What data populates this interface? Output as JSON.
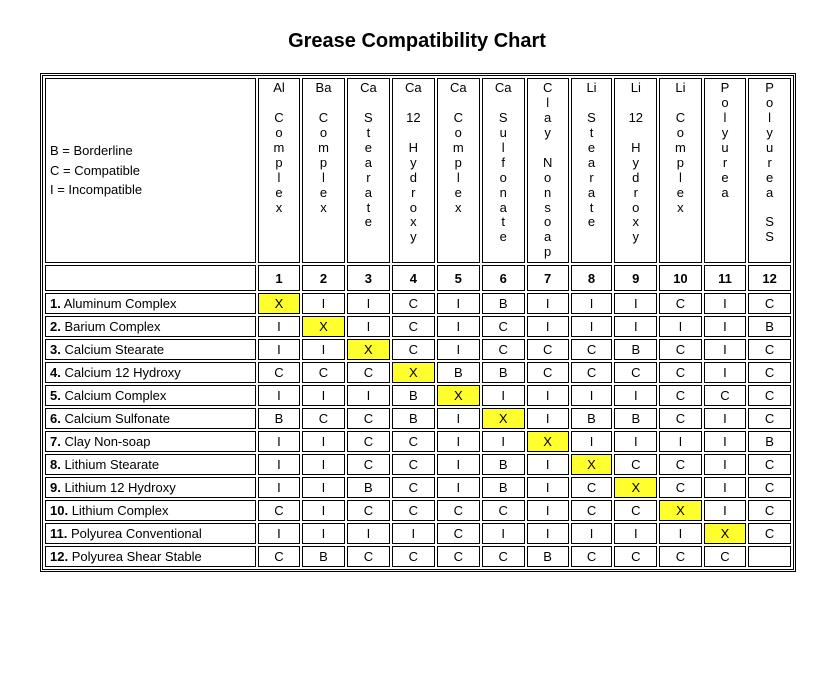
{
  "title": "Grease Compatibility Chart",
  "legend": {
    "b": "B = Borderline",
    "c": "C = Compatible",
    "i": "I = Incompatible"
  },
  "highlight_color": "#ffff2e",
  "columns": [
    {
      "label": "Al Complex",
      "num": "1",
      "vtext": "Al\n\nC\no\nm\np\nl\ne\nx"
    },
    {
      "label": "Ba Complex",
      "num": "2",
      "vtext": "Ba\n\nC\no\nm\np\nl\ne\nx"
    },
    {
      "label": "Ca Stearate",
      "num": "3",
      "vtext": "Ca\n\nS\nt\ne\na\nr\na\nt\ne"
    },
    {
      "label": "Ca 12 Hydroxy",
      "num": "4",
      "vtext": "Ca\n\n12\n\nH\ny\nd\nr\no\nx\ny"
    },
    {
      "label": "Ca Complex",
      "num": "5",
      "vtext": "Ca\n\nC\no\nm\np\nl\ne\nx"
    },
    {
      "label": "Ca Sulfonate",
      "num": "6",
      "vtext": "Ca\n\nS\nu\nl\nf\no\nn\na\nt\ne"
    },
    {
      "label": "Clay Nonsoap",
      "num": "7",
      "vtext": "C\nl\na\ny\n\nN\no\nn\ns\no\na\np"
    },
    {
      "label": "Li Stearate",
      "num": "8",
      "vtext": "Li\n\nS\nt\ne\na\nr\na\nt\ne"
    },
    {
      "label": "Li 12 Hydroxy",
      "num": "9",
      "vtext": "Li\n\n12\n\nH\ny\nd\nr\no\nx\ny"
    },
    {
      "label": "Li Complex",
      "num": "10",
      "vtext": "Li\n\nC\no\nm\np\nl\ne\nx"
    },
    {
      "label": "Polyurea",
      "num": "11",
      "vtext": "P\no\nl\ny\nu\nr\ne\na"
    },
    {
      "label": "Polyurea SS",
      "num": "12",
      "vtext": "P\no\nl\ny\nu\nr\ne\na\n\nS\nS"
    }
  ],
  "rows": [
    {
      "num": "1.",
      "name": "Aluminum Complex",
      "cells": [
        "X",
        "I",
        "I",
        "C",
        "I",
        "B",
        "I",
        "I",
        "I",
        "C",
        "I",
        "C"
      ]
    },
    {
      "num": "2.",
      "name": "Barium Complex",
      "cells": [
        "I",
        "X",
        "I",
        "C",
        "I",
        "C",
        "I",
        "I",
        "I",
        "I",
        "I",
        "B"
      ]
    },
    {
      "num": "3.",
      "name": "Calcium Stearate",
      "cells": [
        "I",
        "I",
        "X",
        "C",
        "I",
        "C",
        "C",
        "C",
        "B",
        "C",
        "I",
        "C"
      ]
    },
    {
      "num": "4.",
      "name": "Calcium 12 Hydroxy",
      "cells": [
        "C",
        "C",
        "C",
        "X",
        "B",
        "B",
        "C",
        "C",
        "C",
        "C",
        "I",
        "C"
      ]
    },
    {
      "num": "5.",
      "name": "Calcium Complex",
      "cells": [
        "I",
        "I",
        "I",
        "B",
        "X",
        "I",
        "I",
        "I",
        "I",
        "C",
        "C",
        "C"
      ]
    },
    {
      "num": "6.",
      "name": "Calcium Sulfonate",
      "cells": [
        "B",
        "C",
        "C",
        "B",
        "I",
        "X",
        "I",
        "B",
        "B",
        "C",
        "I",
        "C"
      ]
    },
    {
      "num": "7.",
      "name": "Clay Non-soap",
      "cells": [
        "I",
        "I",
        "C",
        "C",
        "I",
        "I",
        "X",
        "I",
        "I",
        "I",
        "I",
        "B"
      ]
    },
    {
      "num": "8.",
      "name": "Lithium Stearate",
      "cells": [
        "I",
        "I",
        "C",
        "C",
        "I",
        "B",
        "I",
        "X",
        "C",
        "C",
        "I",
        "C"
      ]
    },
    {
      "num": "9.",
      "name": "Lithium 12 Hydroxy",
      "cells": [
        "I",
        "I",
        "B",
        "C",
        "I",
        "B",
        "I",
        "C",
        "X",
        "C",
        "I",
        "C"
      ]
    },
    {
      "num": "10.",
      "name": "Lithium Complex",
      "cells": [
        "C",
        "I",
        "C",
        "C",
        "C",
        "C",
        "I",
        "C",
        "C",
        "X",
        "I",
        "C"
      ]
    },
    {
      "num": "11.",
      "name": "Polyurea Conventional",
      "cells": [
        "I",
        "I",
        "I",
        "I",
        "C",
        "I",
        "I",
        "I",
        "I",
        "I",
        "X",
        "C"
      ]
    },
    {
      "num": "12.",
      "name": "Polyurea Shear Stable",
      "cells": [
        "C",
        "B",
        "C",
        "C",
        "C",
        "C",
        "B",
        "C",
        "C",
        "C",
        "C",
        ""
      ]
    }
  ]
}
